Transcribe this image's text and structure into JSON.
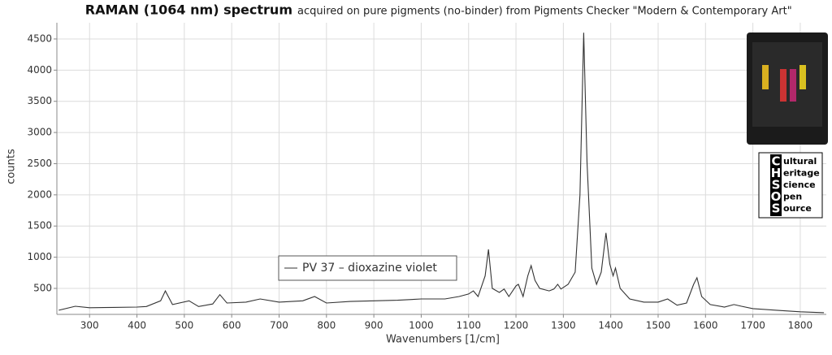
{
  "chart_data": {
    "type": "line",
    "title": "RAMAN (1064 nm) spectrum",
    "subtitle": "acquired on pure pigments (no-binder) from Pigments Checker \"Modern & Contemporary Art\"",
    "x_label": "Wavenumbers [1/cm]",
    "y_label": "counts",
    "xlim": [
      231,
      1855
    ],
    "ylim": [
      83,
      4760
    ],
    "xticks": [
      300,
      400,
      500,
      600,
      700,
      800,
      900,
      1000,
      1100,
      1200,
      1300,
      1400,
      1500,
      1600,
      1700,
      1800
    ],
    "yticks": [
      500,
      1000,
      1500,
      2000,
      2500,
      3000,
      3500,
      4000,
      4500
    ],
    "grid": true,
    "legend": "bottom-center",
    "x": [
      235,
      270,
      300,
      350,
      400,
      420,
      450,
      460,
      475,
      510,
      530,
      560,
      575,
      590,
      630,
      660,
      700,
      750,
      775,
      800,
      850,
      900,
      950,
      1000,
      1050,
      1080,
      1100,
      1110,
      1120,
      1135,
      1142,
      1150,
      1165,
      1175,
      1185,
      1200,
      1205,
      1215,
      1225,
      1232,
      1240,
      1250,
      1270,
      1280,
      1288,
      1295,
      1310,
      1325,
      1335,
      1343,
      1350,
      1360,
      1370,
      1380,
      1390,
      1398,
      1405,
      1410,
      1420,
      1440,
      1470,
      1500,
      1520,
      1540,
      1560,
      1575,
      1582,
      1592,
      1610,
      1640,
      1660,
      1675,
      1700,
      1750,
      1800,
      1850
    ],
    "series": [
      {
        "name": "PV 37 – dioxazine violet",
        "color": "#333333",
        "values": [
          150,
          213,
          190,
          195,
          200,
          210,
          300,
          460,
          240,
          300,
          210,
          250,
          400,
          265,
          280,
          330,
          280,
          300,
          370,
          265,
          290,
          300,
          310,
          330,
          330,
          370,
          410,
          460,
          370,
          700,
          1125,
          500,
          435,
          490,
          370,
          540,
          565,
          370,
          700,
          865,
          630,
          500,
          460,
          490,
          565,
          490,
          565,
          760,
          2000,
          4600,
          2520,
          825,
          565,
          760,
          1390,
          890,
          700,
          825,
          500,
          330,
          280,
          280,
          330,
          230,
          265,
          565,
          670,
          370,
          240,
          200,
          240,
          215,
          175,
          150,
          125,
          110
        ]
      }
    ]
  },
  "logo": {
    "letters": [
      "C",
      "H",
      "S",
      "O",
      "S"
    ],
    "words": [
      "ultural",
      "eritage",
      "cience",
      "pen",
      "ource"
    ]
  }
}
